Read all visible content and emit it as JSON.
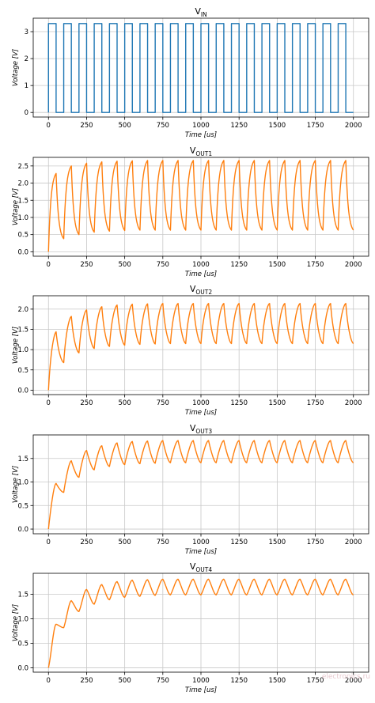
{
  "figure": {
    "watermark": "electronics.ru"
  },
  "chart_data": [
    {
      "type": "line",
      "signal": "vin",
      "title": {
        "main": "V",
        "sub": "IN"
      },
      "xlabel": "Time [us]",
      "ylabel": "Voltage [V]",
      "xlim": [
        -100,
        2100
      ],
      "ylim": [
        -0.17,
        3.5
      ],
      "xticks": [
        0,
        250,
        500,
        750,
        1000,
        1250,
        1500,
        1750,
        2000
      ],
      "yticks": [
        0,
        1,
        2,
        3
      ],
      "ytick_labels": [
        "0",
        "1",
        "2",
        "3"
      ],
      "grid": true,
      "color": "#1f77b4",
      "waveform": {
        "kind": "square",
        "period_us": 100,
        "duty": 0.5,
        "high_v": 3.3,
        "low_v": 0,
        "start_us": 0,
        "end_us": 2000
      }
    },
    {
      "type": "line",
      "signal": "vout1",
      "title": {
        "main": "V",
        "sub": "OUT1"
      },
      "xlabel": "Time [us]",
      "ylabel": "Voltage [V]",
      "xlim": [
        -100,
        2100
      ],
      "ylim": [
        -0.13,
        2.75
      ],
      "xticks": [
        0,
        250,
        500,
        750,
        1000,
        1250,
        1500,
        1750,
        2000
      ],
      "yticks": [
        0,
        0.5,
        1.0,
        1.5,
        2.0,
        2.5
      ],
      "ytick_labels": [
        "0.0",
        "0.5",
        "1.0",
        "1.5",
        "2.0",
        "2.5"
      ],
      "grid": true,
      "color": "#ff7f0e",
      "peaks_v": [
        2.28,
        2.5,
        2.58,
        2.62,
        2.64,
        2.65,
        2.66,
        2.66,
        2.66,
        2.66,
        2.66,
        2.66,
        2.66,
        2.66,
        2.66,
        2.66,
        2.66,
        2.66,
        2.66,
        2.66
      ],
      "troughs_v": [
        0.0,
        0.38,
        0.5,
        0.57,
        0.6,
        0.62,
        0.63,
        0.63,
        0.63,
        0.63,
        0.63,
        0.63,
        0.63,
        0.63,
        0.63,
        0.63,
        0.63,
        0.63,
        0.63,
        0.63
      ]
    },
    {
      "type": "line",
      "signal": "vout2",
      "title": {
        "main": "V",
        "sub": "OUT2"
      },
      "xlabel": "Time [us]",
      "ylabel": "Voltage [V]",
      "xlim": [
        -100,
        2100
      ],
      "ylim": [
        -0.11,
        2.33
      ],
      "xticks": [
        0,
        250,
        500,
        750,
        1000,
        1250,
        1500,
        1750,
        2000
      ],
      "yticks": [
        0,
        0.5,
        1.0,
        1.5,
        2.0
      ],
      "ytick_labels": [
        "0.0",
        "0.5",
        "1.0",
        "1.5",
        "2.0"
      ],
      "grid": true,
      "color": "#ff7f0e",
      "peaks_v": [
        1.44,
        1.82,
        1.98,
        2.06,
        2.1,
        2.12,
        2.13,
        2.14,
        2.14,
        2.14,
        2.14,
        2.14,
        2.14,
        2.14,
        2.14,
        2.14,
        2.14,
        2.14,
        2.14,
        2.14
      ],
      "troughs_v": [
        0.0,
        0.68,
        0.92,
        1.03,
        1.08,
        1.11,
        1.13,
        1.14,
        1.15,
        1.15,
        1.15,
        1.15,
        1.15,
        1.15,
        1.15,
        1.15,
        1.15,
        1.15,
        1.15,
        1.15
      ]
    },
    {
      "type": "line",
      "signal": "vout3",
      "title": {
        "main": "V",
        "sub": "OUT3"
      },
      "xlabel": "Time [us]",
      "ylabel": "Voltage [V]",
      "xlim": [
        -100,
        2100
      ],
      "ylim": [
        -0.1,
        2.0
      ],
      "xticks": [
        0,
        250,
        500,
        750,
        1000,
        1250,
        1500,
        1750,
        2000
      ],
      "yticks": [
        0,
        0.5,
        1.0,
        1.5
      ],
      "ytick_labels": [
        "0.0",
        "0.5",
        "1.0",
        "1.5"
      ],
      "grid": true,
      "color": "#ff7f0e",
      "peaks_v": [
        0.97,
        1.45,
        1.67,
        1.77,
        1.83,
        1.86,
        1.87,
        1.88,
        1.88,
        1.88,
        1.88,
        1.88,
        1.88,
        1.88,
        1.88,
        1.88,
        1.88,
        1.88,
        1.88,
        1.88
      ],
      "troughs_v": [
        0.0,
        0.78,
        1.1,
        1.26,
        1.33,
        1.37,
        1.39,
        1.4,
        1.41,
        1.41,
        1.41,
        1.41,
        1.41,
        1.41,
        1.41,
        1.41,
        1.41,
        1.41,
        1.41,
        1.41
      ]
    },
    {
      "type": "line",
      "signal": "vout4",
      "title": {
        "main": "V",
        "sub": "OUT4"
      },
      "xlabel": "Time [us]",
      "ylabel": "Voltage [V]",
      "xlim": [
        -100,
        2100
      ],
      "ylim": [
        -0.09,
        1.93
      ],
      "xticks": [
        0,
        250,
        500,
        750,
        1000,
        1250,
        1500,
        1750,
        2000
      ],
      "yticks": [
        0,
        0.5,
        1.0,
        1.5
      ],
      "ytick_labels": [
        "0.0",
        "0.5",
        "1.0",
        "1.5"
      ],
      "grid": true,
      "color": "#ff7f0e",
      "peaks_v": [
        0.89,
        1.37,
        1.6,
        1.7,
        1.76,
        1.79,
        1.8,
        1.81,
        1.81,
        1.81,
        1.81,
        1.81,
        1.81,
        1.81,
        1.81,
        1.81,
        1.81,
        1.81,
        1.81,
        1.81
      ],
      "troughs_v": [
        0.0,
        0.82,
        1.15,
        1.3,
        1.39,
        1.44,
        1.46,
        1.48,
        1.49,
        1.49,
        1.49,
        1.49,
        1.49,
        1.49,
        1.49,
        1.49,
        1.49,
        1.49,
        1.49,
        1.49
      ]
    }
  ]
}
